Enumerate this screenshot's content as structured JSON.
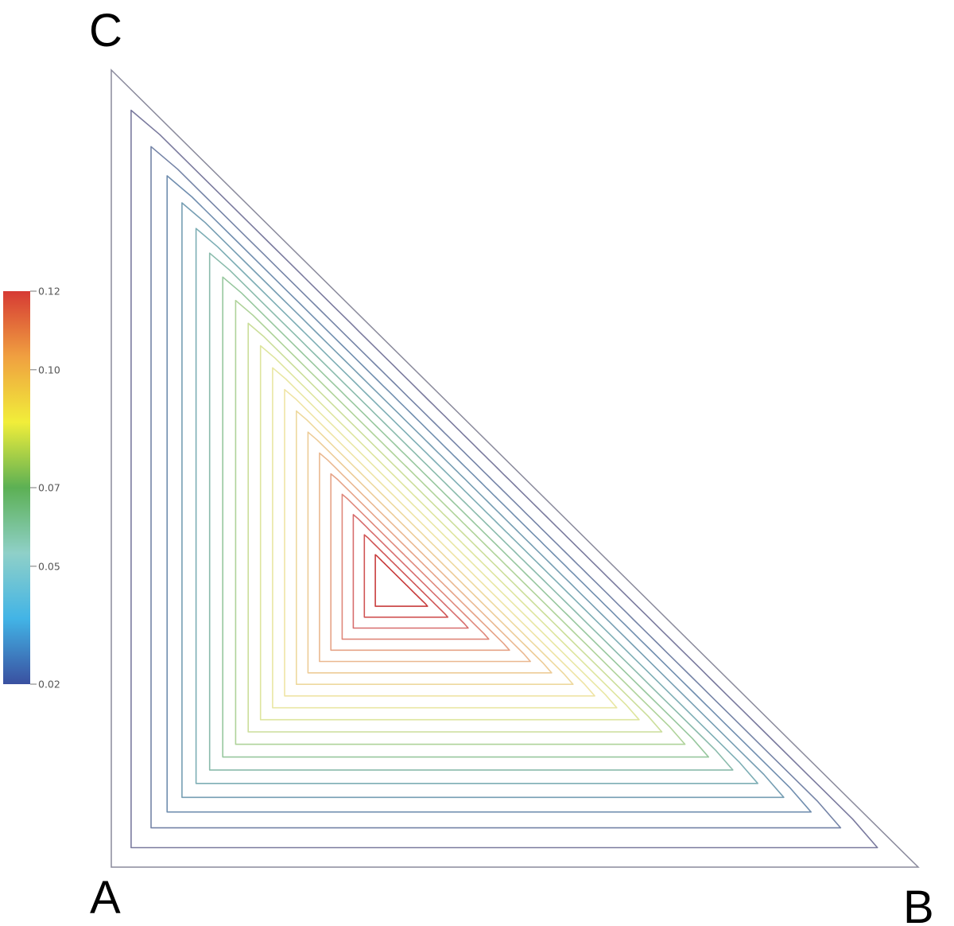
{
  "chart_data": {
    "type": "ternary-contour",
    "vertices": [
      "A",
      "B",
      "C"
    ],
    "contour_center": {
      "B": 0.35,
      "C": 0.35
    },
    "contour_levels_count": 20,
    "colorbar": {
      "min": 0.02,
      "max": 0.12,
      "ticks": [
        "0.12",
        "0.10",
        "0.07",
        "0.05",
        "0.02"
      ],
      "tick_values": [
        0.12,
        0.1,
        0.07,
        0.05,
        0.02
      ],
      "colors": [
        "#3a50a0",
        "#42b4e6",
        "#8fd0c8",
        "#5cb054",
        "#f1ee3a",
        "#f0a040",
        "#d63a34"
      ]
    },
    "line_colors": {
      "outer": "#7a7a9e",
      "inner": "#c83c3c"
    }
  }
}
